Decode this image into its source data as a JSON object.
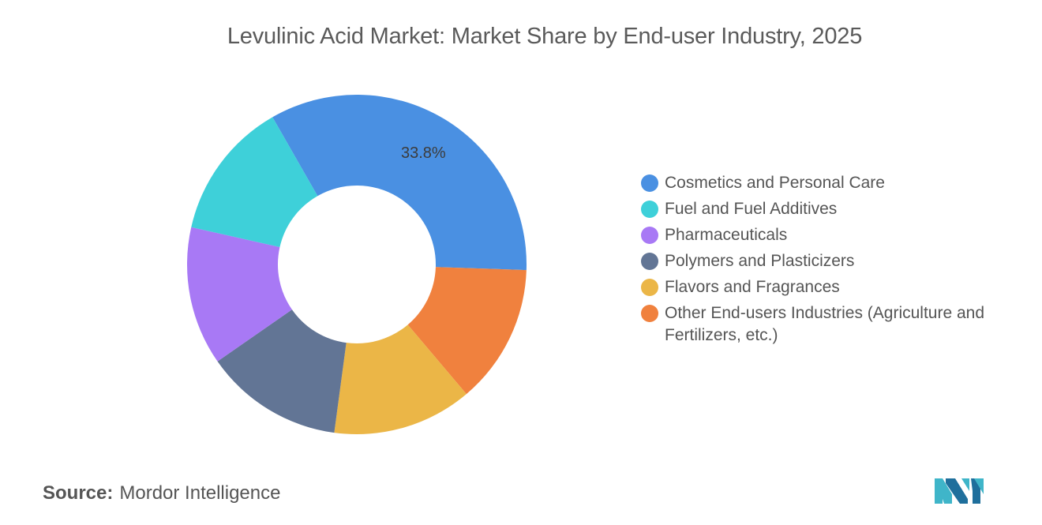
{
  "chart_data": {
    "type": "pie",
    "variant": "donut",
    "title": "Levulinic Acid Market: Market Share by End-user Industry, 2025",
    "categories": [
      "Cosmetics and Personal Care",
      "Fuel and Fuel Additives",
      "Pharmaceuticals",
      "Polymers and Plasticizers",
      "Flavors and Fragrances",
      "Other End-users Industries (Agriculture and Fertilizers, etc.)"
    ],
    "values": [
      33.8,
      13.2,
      13.2,
      13.2,
      13.3,
      13.3
    ],
    "slice_order_clockwise_from_top": [
      0,
      5,
      4,
      3,
      2,
      1
    ],
    "colors": [
      "#4a90e2",
      "#3ed0d9",
      "#a879f5",
      "#627595",
      "#ebb647",
      "#f0813e"
    ],
    "data_labels": [
      {
        "category_index": 0,
        "text": "33.8%"
      }
    ],
    "legend_position": "right"
  },
  "source": {
    "label": "Source:",
    "text": "Mordor Intelligence"
  },
  "logo": {
    "icon": "mordor-intelligence-logo-icon",
    "colors": [
      "#3fb5c9",
      "#1f6f9c"
    ]
  }
}
